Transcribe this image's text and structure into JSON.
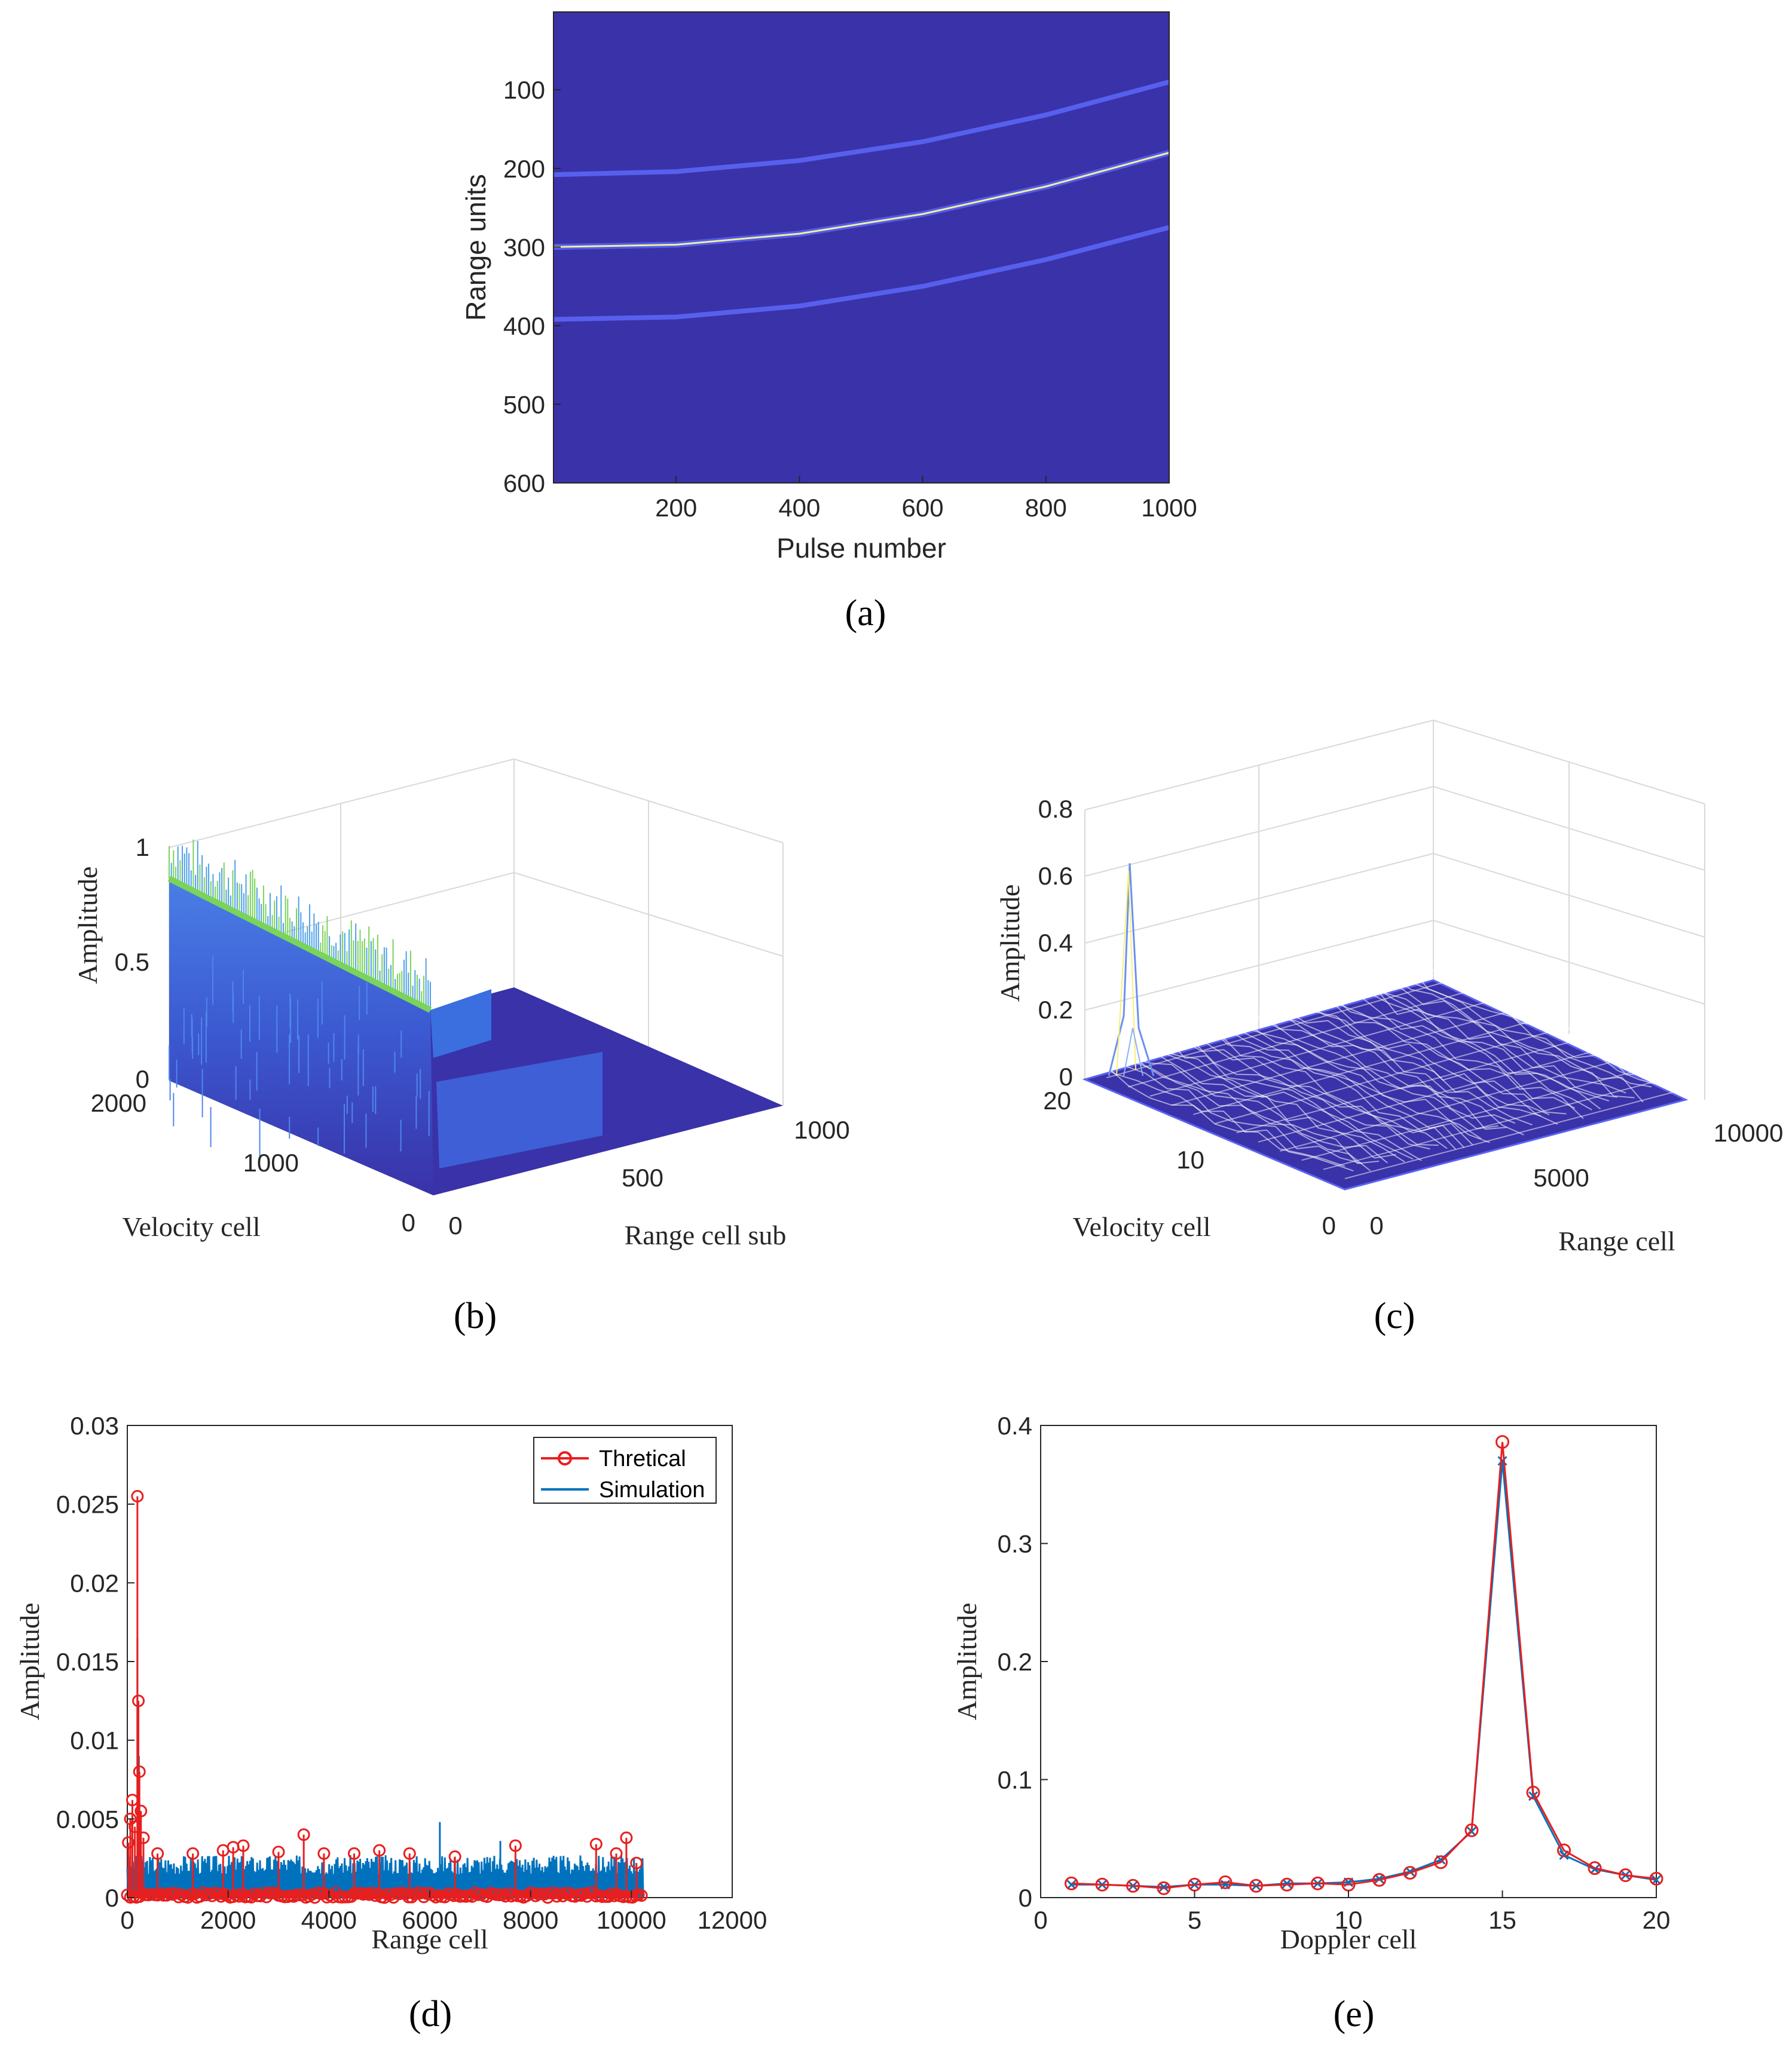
{
  "colors": {
    "background": "#3a32a8",
    "trace": "#f0f0a0",
    "curve": "#5b64f5",
    "theory": "#e81f1f",
    "simulation": "#0072bd",
    "surface_dark": "#3a32a8",
    "surface_mid": "#3b6fe0",
    "surface_peak": "#7ad35a"
  },
  "chart_data": [
    {
      "id": "a",
      "type": "heatmap",
      "caption": "(a)",
      "xlabel": "Pulse number",
      "ylabel": "Range units",
      "xlim": [
        1,
        1000
      ],
      "ylim": [
        1,
        600
      ],
      "xticks": [
        200,
        400,
        600,
        800,
        1000
      ],
      "yticks": [
        100,
        200,
        300,
        400,
        500,
        600
      ],
      "curves": [
        {
          "name": "main-trace",
          "points": [
            [
              1,
              300
            ],
            [
              200,
              297
            ],
            [
              400,
              283
            ],
            [
              600,
              258
            ],
            [
              800,
              223
            ],
            [
              1000,
              180
            ]
          ]
        },
        {
          "name": "upper-echo",
          "points": [
            [
              1,
              208
            ],
            [
              200,
              204
            ],
            [
              400,
              190
            ],
            [
              600,
              166
            ],
            [
              800,
              132
            ],
            [
              1000,
              90
            ]
          ]
        },
        {
          "name": "lower-echo",
          "points": [
            [
              1,
              392
            ],
            [
              200,
              389
            ],
            [
              400,
              375
            ],
            [
              600,
              350
            ],
            [
              800,
              316
            ],
            [
              1000,
              275
            ]
          ]
        }
      ]
    },
    {
      "id": "b",
      "type": "surface",
      "caption": "(b)",
      "xlabel": "Range cell sub",
      "ylabel": "Velocity cell",
      "zlabel": "Amplitude",
      "xticks": [
        "0",
        "500",
        "1000"
      ],
      "yticks": [
        "0",
        "1000",
        "2000"
      ],
      "zticks": [
        "0",
        "0.5",
        "1"
      ],
      "zlim": [
        0,
        1
      ]
    },
    {
      "id": "c",
      "type": "surface",
      "caption": "(c)",
      "xlabel": "Range cell",
      "ylabel": "Velocity cell",
      "zlabel": "Amplitude",
      "xticks": [
        "0",
        "5000",
        "10000"
      ],
      "yticks": [
        "0",
        "10",
        "20"
      ],
      "zticks": [
        "0",
        "0.2",
        "0.4",
        "0.6",
        "0.8"
      ],
      "zlim": [
        0,
        0.8
      ],
      "peak_value": 0.64
    },
    {
      "id": "d",
      "type": "line",
      "caption": "(d)",
      "xlabel": "Range cell",
      "ylabel": "Amplitude",
      "xlim": [
        0,
        12000
      ],
      "ylim": [
        0,
        0.03
      ],
      "xticks": [
        0,
        2000,
        4000,
        6000,
        8000,
        10000,
        12000
      ],
      "yticks": [
        0,
        0.005,
        0.01,
        0.015,
        0.02,
        0.025,
        0.03
      ],
      "series": [
        {
          "name": "Thretical",
          "peaks": [
            [
              20,
              0.0035
            ],
            [
              60,
              0.005
            ],
            [
              100,
              0.0062
            ],
            [
              150,
              0.0045
            ],
            [
              200,
              0.0255
            ],
            [
              220,
              0.0125
            ],
            [
              240,
              0.008
            ],
            [
              270,
              0.0055
            ],
            [
              320,
              0.0038
            ],
            [
              600,
              0.0028
            ],
            [
              1300,
              0.0028
            ],
            [
              1900,
              0.003
            ],
            [
              2100,
              0.0032
            ],
            [
              2300,
              0.0033
            ],
            [
              3000,
              0.0029
            ],
            [
              3500,
              0.004
            ],
            [
              3900,
              0.0028
            ],
            [
              4500,
              0.0028
            ],
            [
              5000,
              0.003
            ],
            [
              5600,
              0.0028
            ],
            [
              6500,
              0.0026
            ],
            [
              7700,
              0.0033
            ],
            [
              9300,
              0.0034
            ],
            [
              9700,
              0.0028
            ],
            [
              9900,
              0.0038
            ],
            [
              10100,
              0.0022
            ]
          ],
          "noise_max": 0.0018,
          "xmax": 10240
        },
        {
          "name": "Simulation",
          "peaks": [
            [
              200,
              0.0165
            ],
            [
              230,
              0.009
            ],
            [
              6200,
              0.0048
            ],
            [
              7400,
              0.0036
            ]
          ],
          "noise_max": 0.0027,
          "xmax": 10240
        }
      ],
      "legend": [
        "Thretical",
        "Simulation"
      ]
    },
    {
      "id": "e",
      "type": "line",
      "caption": "(e)",
      "xlabel": "Doppler cell",
      "ylabel": "Amplitude",
      "xlim": [
        0,
        20
      ],
      "ylim": [
        0,
        0.4
      ],
      "xticks": [
        0,
        5,
        10,
        15,
        20
      ],
      "yticks": [
        0,
        0.1,
        0.2,
        0.3,
        0.4
      ],
      "x": [
        1,
        2,
        3,
        4,
        5,
        6,
        7,
        8,
        9,
        10,
        11,
        12,
        13,
        14,
        15,
        16,
        17,
        18,
        19,
        20
      ],
      "series": [
        {
          "name": "Thretical",
          "values": [
            0.012,
            0.011,
            0.01,
            0.008,
            0.011,
            0.013,
            0.01,
            0.011,
            0.012,
            0.011,
            0.015,
            0.021,
            0.03,
            0.057,
            0.386,
            0.089,
            0.04,
            0.025,
            0.019,
            0.016
          ]
        },
        {
          "name": "Simulation",
          "values": [
            0.011,
            0.011,
            0.01,
            0.009,
            0.011,
            0.011,
            0.01,
            0.012,
            0.012,
            0.013,
            0.016,
            0.022,
            0.032,
            0.056,
            0.37,
            0.086,
            0.036,
            0.024,
            0.019,
            0.015
          ]
        }
      ]
    }
  ]
}
